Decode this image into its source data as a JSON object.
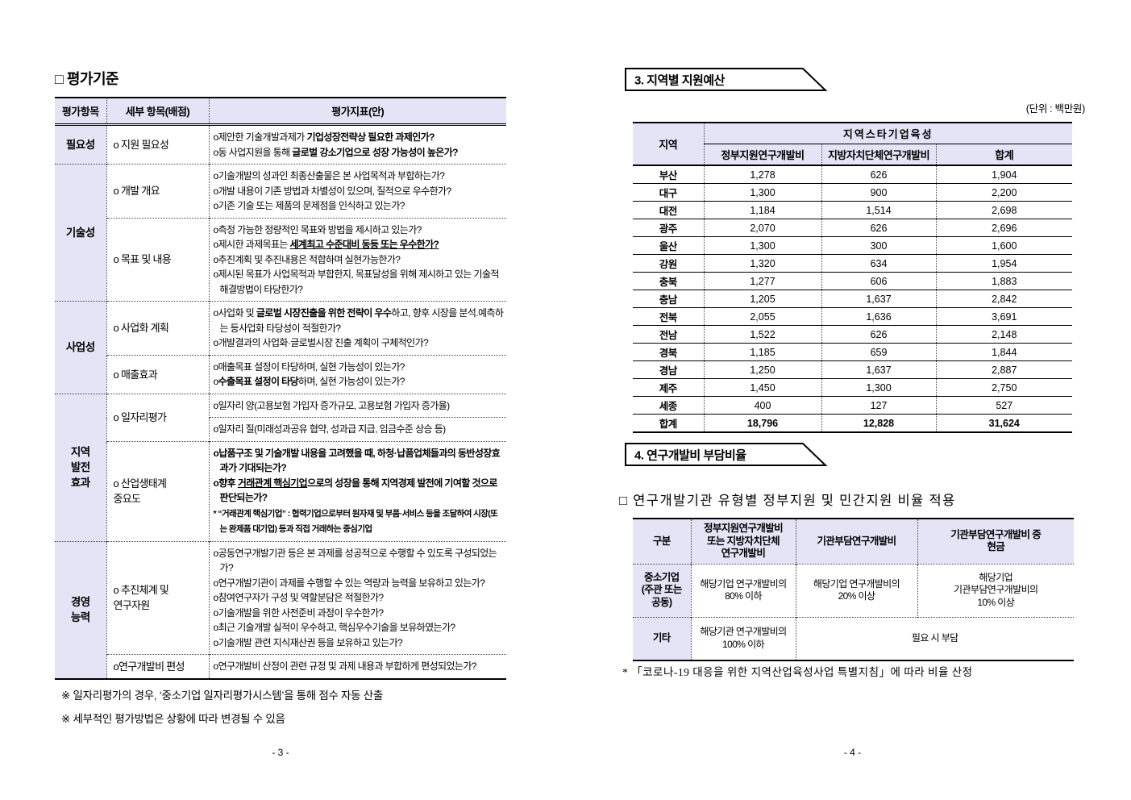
{
  "colors": {
    "cell_shade": "#e4e4f6"
  },
  "page_left": {
    "title": "□ 평가기준",
    "eval_table": {
      "headers": [
        "평가항목",
        "세부 항목(배점)",
        "평가지표(안)"
      ],
      "groups": [
        "필요성",
        "기술성",
        "사업성",
        "지역\n발전\n효과",
        "경영\n능력"
      ],
      "items": [
        "o 지원 필요성",
        "o 개발 개요",
        "o 목표 및 내용",
        "o 사업화 계획",
        "o 매출효과",
        "o 일자리평가",
        "o 산업생태계\n   중요도",
        "o 추진체계 및\n   연구자원",
        "o연구개발비 편성"
      ],
      "bullets": {
        "b0": [
          [
            {
              "t": "o제안한 기술개발과제가 "
            },
            {
              "t": "기업성장전략상 필요한 과제인가?",
              "b": true
            }
          ],
          [
            {
              "t": "o동 사업지원을 통해 "
            },
            {
              "t": "글로벌 강소기업으로 성장 가능성이 높은가?",
              "b": true
            }
          ]
        ],
        "b1": [
          [
            {
              "t": "o기술개발의 성과인 최종산출물은 본 사업목적과 부합하는가?"
            }
          ],
          [
            {
              "t": "o개발 내용이 기존 방법과 차별성이 있으며, 질적으로 우수한가?"
            }
          ],
          [
            {
              "t": "o기존 기술 또는 제품의 문제점을 인식하고 있는가?"
            }
          ]
        ],
        "b2": [
          [
            {
              "t": "o측정 가능한 정량적인 목표와 방법을 제시하고 있는가?"
            }
          ],
          [
            {
              "t": "o제시한 과제목표는 "
            },
            {
              "t": "세계최고 수준대비 동등 또는 우수한가?",
              "b": true,
              "u": true
            }
          ],
          [
            {
              "t": "o추진계획 및 추진내용은 적합하며 실현가능한가?"
            }
          ],
          [
            {
              "t": "o제시된 목표가 사업목적과 부합한지, 목표달성을 위해 제시하고 있는 기술적 해결방법이 타당한가?"
            }
          ]
        ],
        "b3": [
          [
            {
              "t": "o사업화 및 "
            },
            {
              "t": "글로벌 시장진출을 위한 전략이 우수",
              "b": true
            },
            {
              "t": "하고, 향후 시장을 분석.예측하는 등사업화 타당성이 적절한가?"
            }
          ],
          [
            {
              "t": "o개발결과의 사업화·글로벌시장 진출 계획이 구체적인가?"
            }
          ]
        ],
        "b4": [
          [
            {
              "t": "o매출목표 설정이 타당하며, 실현 가능성이 있는가?"
            }
          ],
          [
            {
              "t": "o"
            },
            {
              "t": "수출목표 설정이 타당",
              "b": true
            },
            {
              "t": "하며, 실현 가능성이 있는가?"
            }
          ]
        ],
        "b5": [
          [
            {
              "t": "o일자리 양(고용보험 가입자 증가규모, 고용보험 가입자 증가율)"
            }
          ]
        ],
        "b6": [
          [
            {
              "t": "o일자리 질(미래성과공유 협약, 성과급 지급, 임금수준 상승 등)"
            }
          ]
        ],
        "b7": [
          [
            {
              "t": "o납품구조 및 기술개발 내용을 고려했을 때, 하청·납품업체들과의 동반성장효과가 기대되는가?",
              "b": true
            }
          ],
          [
            {
              "t": "o향후 ",
              "b": true
            },
            {
              "t": "거래관계 핵심기업",
              "b": true,
              "u": true
            },
            {
              "t": "으로의 성장을 통해 지역경제 발전에 기여할 것으로 판단되는가?",
              "b": true
            }
          ],
          [
            {
              "t": "* “거래관계 핵심기업” : 협력기업으로부터 원자재 및 부품·서비스 등을 조달하여 시장(또는 완제품 대기업) 등과 직접 거래하는 중심기업",
              "b": true,
              "sm": true
            }
          ]
        ],
        "b8": [
          [
            {
              "t": "o공동연구개발기관 등은 본 과제를 성공적으로 수행할 수 있도록 구성되었는가?"
            }
          ],
          [
            {
              "t": "o연구개발기관이 과제를 수행할 수 있는 역량과 능력을 보유하고 있는가?"
            }
          ],
          [
            {
              "t": "o참여연구자가 구성 및 역할분담은 적절한가?"
            }
          ],
          [
            {
              "t": "o기술개발을 위한 사전준비 과정이 우수한가?"
            }
          ],
          [
            {
              "t": "o최근 기술개발 실적이 우수하고, 핵심우수기술을 보유하였는가?"
            }
          ],
          [
            {
              "t": "o기술개발 관련 지식재산권 등을 보유하고 있는가?"
            }
          ]
        ],
        "b9": [
          [
            {
              "t": "o연구개발비 산정이 관련 규정 및 과제 내용과 부합하게 편성되었는가?"
            }
          ]
        ]
      }
    },
    "notes": [
      "※ 일자리평가의 경우, ‘중소기업 일자리평가시스템’을 통해 점수 자동 산출",
      "※ 세부적인 평가방법은 상황에 따라 변경될 수 있음"
    ],
    "page_number": "- 3 -"
  },
  "page_right": {
    "section3": {
      "banner": "3. 지역별 지원예산",
      "unit_label": "(단위 : 백만원)",
      "budget": {
        "col_region": "지역",
        "col_group": "지역스타기업육성",
        "subcols": [
          "정부지원연구개발비",
          "지방자치단체연구개발비",
          "합계"
        ],
        "rows": [
          [
            "부산",
            "1,278",
            "626",
            "1,904"
          ],
          [
            "대구",
            "1,300",
            "900",
            "2,200"
          ],
          [
            "대전",
            "1,184",
            "1,514",
            "2,698"
          ],
          [
            "광주",
            "2,070",
            "626",
            "2,696"
          ],
          [
            "울산",
            "1,300",
            "300",
            "1,600"
          ],
          [
            "강원",
            "1,320",
            "634",
            "1,954"
          ],
          [
            "충북",
            "1,277",
            "606",
            "1,883"
          ],
          [
            "충남",
            "1,205",
            "1,637",
            "2,842"
          ],
          [
            "전북",
            "2,055",
            "1,636",
            "3,691"
          ],
          [
            "전남",
            "1,522",
            "626",
            "2,148"
          ],
          [
            "경북",
            "1,185",
            "659",
            "1,844"
          ],
          [
            "경남",
            "1,250",
            "1,637",
            "2,887"
          ],
          [
            "제주",
            "1,450",
            "1,300",
            "2,750"
          ],
          [
            "세종",
            "400",
            "127",
            "527"
          ]
        ],
        "total": [
          "합계",
          "18,796",
          "12,828",
          "31,624"
        ]
      }
    },
    "section4": {
      "banner": "4. 연구개발비 부담비율",
      "subheading": "□ 연구개발기관 유형별 정부지원 및 민간지원 비율 적용",
      "ratio": {
        "headers": [
          "구분",
          "정부지원연구개발비\n또는 지방자치단체\n연구개발비",
          "기관부담연구개발비",
          "기관부담연구개발비 중\n현금"
        ],
        "row_sme": {
          "label": "중소기업\n(주관 또는\n공동)",
          "cells": [
            "해당기업 연구개발비의\n80% 이하",
            "해당기업 연구개발비의\n20% 이상",
            "해당기업\n기관부담연구개발비의\n10% 이상"
          ]
        },
        "row_etc": {
          "label": "기타",
          "cells": [
            "해당기관 연구개발비의\n100% 이하",
            "필요 시 부담"
          ]
        }
      },
      "footnote": "* 「코로나-19 대응을 위한 지역산업육성사업 특별지침」에 따라 비율 산정"
    },
    "page_number": "- 4 -"
  }
}
